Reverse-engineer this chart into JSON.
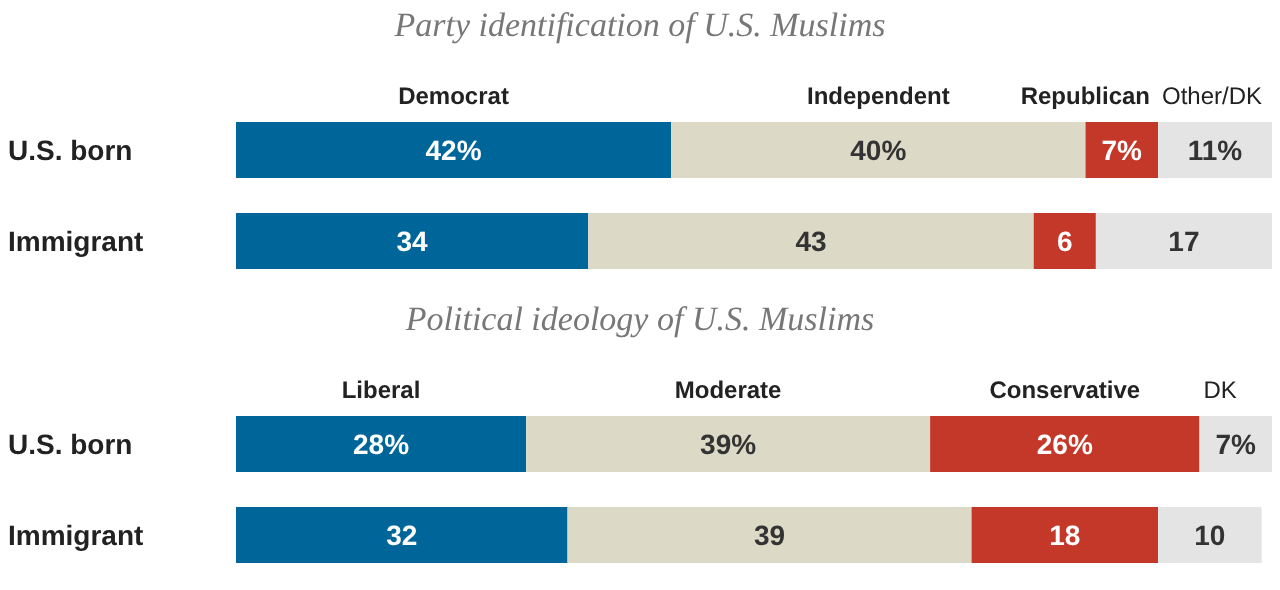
{
  "chart_data": [
    {
      "type": "bar",
      "title": "Party identification of U.S. Muslims",
      "orientation": "horizontal",
      "stacked": true,
      "legend": false,
      "categories": [
        "U.S. born",
        "Immigrant"
      ],
      "series": [
        {
          "name": "Democrat",
          "color": "#006599",
          "values": [
            42,
            34
          ],
          "value_labels": [
            "42%",
            "34"
          ]
        },
        {
          "name": "Independent",
          "color": "#dcd9c6",
          "values": [
            40,
            43
          ],
          "value_labels": [
            "40%",
            "43"
          ]
        },
        {
          "name": "Republican",
          "color": "#c4382a",
          "values": [
            7,
            6
          ],
          "value_labels": [
            "7%",
            "6"
          ]
        },
        {
          "name": "Other/DK",
          "color": "#e4e4e4",
          "values": [
            11,
            17
          ],
          "value_labels": [
            "11%",
            "17"
          ]
        }
      ]
    },
    {
      "type": "bar",
      "title": "Political ideology of U.S. Muslims",
      "orientation": "horizontal",
      "stacked": true,
      "legend": false,
      "categories": [
        "U.S. born",
        "Immigrant"
      ],
      "series": [
        {
          "name": "Liberal",
          "color": "#006599",
          "values": [
            28,
            32
          ],
          "value_labels": [
            "28%",
            "32"
          ]
        },
        {
          "name": "Moderate",
          "color": "#dcd9c6",
          "values": [
            39,
            39
          ],
          "value_labels": [
            "39%",
            "39"
          ]
        },
        {
          "name": "Conservative",
          "color": "#c4382a",
          "values": [
            26,
            18
          ],
          "value_labels": [
            "26%",
            "18"
          ]
        },
        {
          "name": "DK",
          "color": "#e4e4e4",
          "values": [
            7,
            10
          ],
          "value_labels": [
            "7%",
            "10"
          ]
        }
      ]
    }
  ]
}
